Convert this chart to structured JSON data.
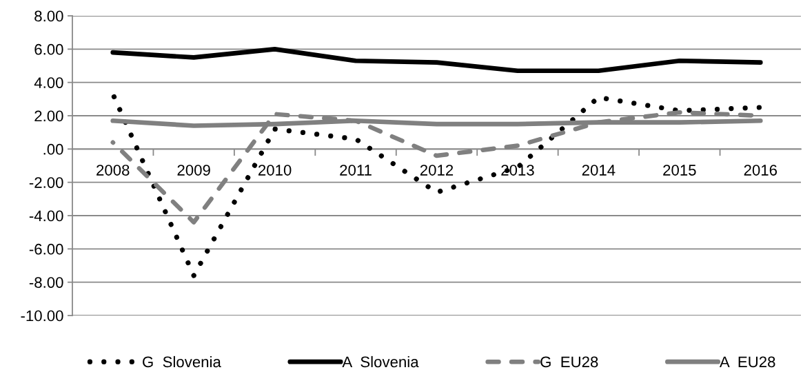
{
  "chart_data": {
    "type": "line",
    "categories": [
      "2008",
      "2009",
      "2010",
      "2011",
      "2012",
      "2013",
      "2014",
      "2015",
      "2016"
    ],
    "series": [
      {
        "name": "G  Slovenia",
        "color": "#000000",
        "line_style": "dotted",
        "values": [
          3.3,
          -7.6,
          1.2,
          0.6,
          -2.6,
          -1.1,
          3.1,
          2.3,
          2.5
        ]
      },
      {
        "name": "A  Slovenia",
        "color": "#000000",
        "line_style": "solid",
        "values": [
          5.8,
          5.5,
          6.0,
          5.3,
          5.2,
          4.7,
          4.7,
          5.3,
          5.2
        ]
      },
      {
        "name": "G  EU28",
        "color": "#808080",
        "line_style": "dashed",
        "values": [
          0.4,
          -4.4,
          2.1,
          1.7,
          -0.4,
          0.2,
          1.6,
          2.2,
          2.0
        ]
      },
      {
        "name": "A  EU28",
        "color": "#808080",
        "line_style": "solid",
        "values": [
          1.7,
          1.4,
          1.5,
          1.7,
          1.5,
          1.5,
          1.6,
          1.6,
          1.7
        ]
      }
    ],
    "ylim": [
      -10,
      8
    ],
    "yticks": [
      {
        "value": -10,
        "label": "-10.00"
      },
      {
        "value": -8,
        "label": "-8.00"
      },
      {
        "value": -6,
        "label": "-6.00"
      },
      {
        "value": -4,
        "label": "-4.00"
      },
      {
        "value": -2,
        "label": "-2.00"
      },
      {
        "value": 0,
        "label": ".00"
      },
      {
        "value": 2,
        "label": "2.00"
      },
      {
        "value": 4,
        "label": "4.00"
      },
      {
        "value": 6,
        "label": "6.00"
      },
      {
        "value": 8,
        "label": "8.00"
      }
    ],
    "grid": "y",
    "legend": "bottom"
  }
}
